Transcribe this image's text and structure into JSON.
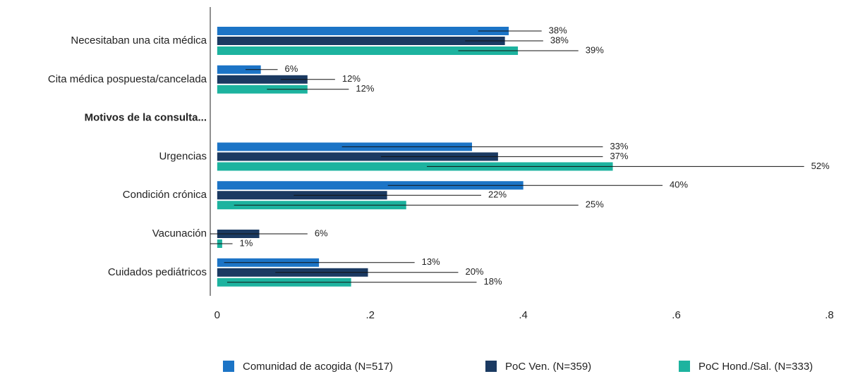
{
  "chart_data": {
    "type": "hbar_errorbar",
    "categories": [
      "Necesitaban una cita médica",
      "Cita médica pospuesta/cancelada",
      "Motivos de la consulta...",
      "Urgencias",
      "Condición crónica",
      "Vacunación",
      "Cuidados pediátricos"
    ],
    "bold_categories": [
      "Motivos de la consulta..."
    ],
    "series": [
      {
        "name": "Comunidad de acogida (N=517)",
        "color": "#1c74c6",
        "values": [
          0.381,
          0.057,
          null,
          0.333,
          0.4,
          null,
          0.133
        ],
        "value_labels": [
          "38%",
          "6%",
          null,
          "33%",
          "40%",
          null,
          "13%"
        ],
        "ci_low": [
          0.341,
          0.037,
          null,
          0.163,
          0.223,
          null,
          0.009
        ],
        "ci_high": [
          0.424,
          0.079,
          null,
          0.504,
          0.582,
          null,
          0.258
        ]
      },
      {
        "name": "PoC Ven. (N=359)",
        "color": "#1b3a62",
        "values": [
          0.376,
          0.118,
          null,
          0.367,
          0.222,
          0.055,
          0.197
        ],
        "value_labels": [
          "38%",
          "12%",
          null,
          "37%",
          "22%",
          "6%",
          "20%"
        ],
        "ci_low": [
          0.324,
          0.083,
          null,
          0.214,
          0.1,
          -0.009,
          0.076
        ],
        "ci_high": [
          0.426,
          0.154,
          null,
          0.504,
          0.345,
          0.118,
          0.315
        ]
      },
      {
        "name": "PoC Hond./Sal. (N=333)",
        "color": "#1db39f",
        "values": [
          0.393,
          0.118,
          null,
          0.517,
          0.247,
          0.0065,
          0.175
        ],
        "value_labels": [
          "39%",
          "12%",
          null,
          "52%",
          "25%",
          "1%",
          "18%"
        ],
        "ci_low": [
          0.315,
          0.065,
          null,
          0.274,
          0.022,
          -0.009,
          0.013
        ],
        "ci_high": [
          0.472,
          0.172,
          null,
          0.767,
          0.472,
          0.02,
          0.339
        ]
      }
    ],
    "xlim": [
      -0.01,
      0.83
    ],
    "xticks": [
      0,
      {
        "value": 0.2,
        "label": ".2"
      },
      {
        "value": 0.4,
        "label": ".4"
      },
      {
        "value": 0.6,
        "label": ".6"
      },
      {
        "value": 0.8,
        "label": ".8"
      }
    ],
    "legend": "bottom"
  }
}
